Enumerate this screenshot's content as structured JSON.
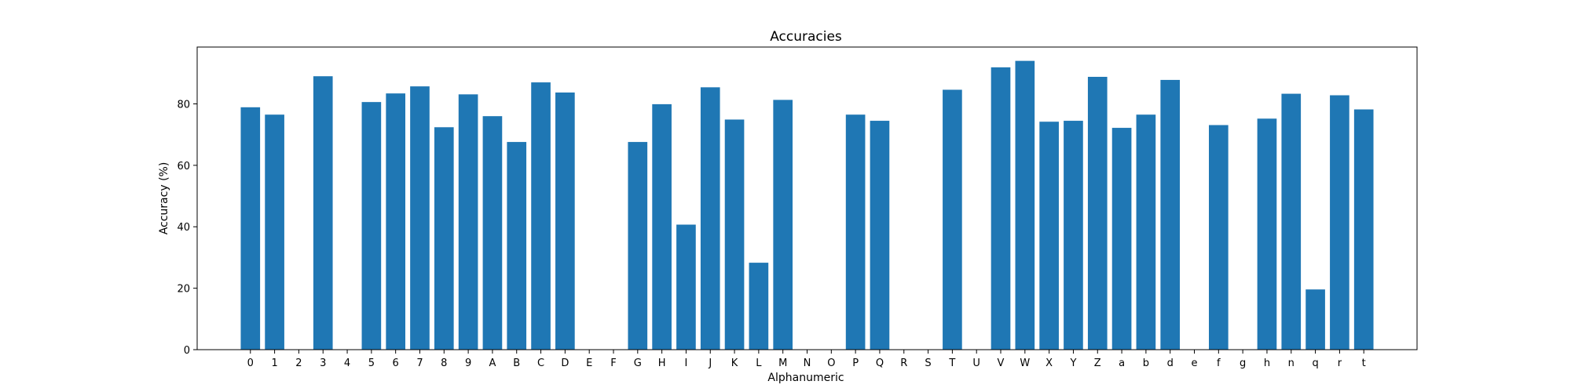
{
  "chart_data": {
    "type": "bar",
    "title": "Accuracies",
    "xlabel": "Alphanumeric",
    "ylabel": "Accuracy (%)",
    "ylim": [
      0,
      98.5
    ],
    "yticks": [
      0,
      20,
      40,
      60,
      80
    ],
    "grid": false,
    "color": "#1f77b4",
    "categories": [
      "0",
      "1",
      "2",
      "3",
      "4",
      "5",
      "6",
      "7",
      "8",
      "9",
      "A",
      "B",
      "C",
      "D",
      "E",
      "F",
      "G",
      "H",
      "I",
      "J",
      "K",
      "L",
      "M",
      "N",
      "O",
      "P",
      "Q",
      "R",
      "S",
      "T",
      "U",
      "V",
      "W",
      "X",
      "Y",
      "Z",
      "a",
      "b",
      "d",
      "e",
      "f",
      "g",
      "h",
      "n",
      "q",
      "r",
      "t"
    ],
    "values": [
      78.9,
      76.5,
      0,
      89.0,
      0,
      80.6,
      83.4,
      85.7,
      72.4,
      83.1,
      76.0,
      67.6,
      87.0,
      83.7,
      0,
      0,
      67.6,
      79.9,
      40.7,
      85.4,
      74.9,
      28.3,
      81.3,
      0,
      0,
      76.5,
      74.5,
      0,
      0,
      84.6,
      0,
      91.9,
      94.0,
      74.2,
      74.5,
      88.8,
      72.2,
      76.5,
      87.8,
      0,
      73.1,
      0,
      75.2,
      83.3,
      19.6,
      82.8,
      78.2
    ]
  }
}
